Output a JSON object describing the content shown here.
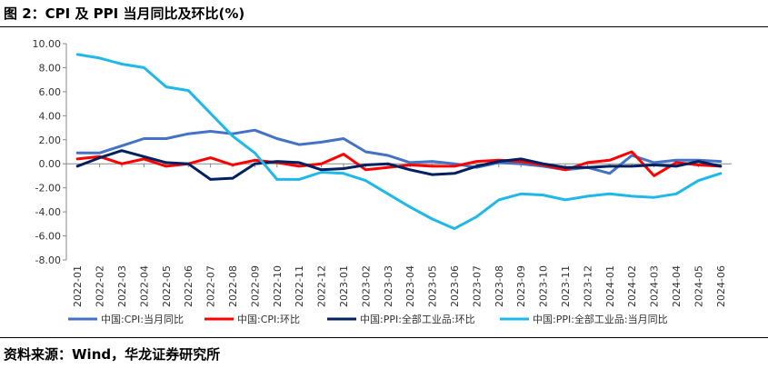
{
  "figure": {
    "title": "图 2：CPI 及 PPI 当月同比及环比(%)",
    "source": "资料来源：Wind，华龙证券研究所"
  },
  "chart_data": {
    "type": "line",
    "title": "",
    "xlabel": "",
    "ylabel": "",
    "ylim": [
      -8,
      10
    ],
    "ytick_step": 2,
    "grid": false,
    "legend_position": "bottom",
    "categories": [
      "2022-01",
      "2022-02",
      "2022-03",
      "2022-04",
      "2022-05",
      "2022-06",
      "2022-07",
      "2022-08",
      "2022-09",
      "2022-10",
      "2022-11",
      "2022-12",
      "2023-01",
      "2023-02",
      "2023-03",
      "2023-04",
      "2023-05",
      "2023-06",
      "2023-07",
      "2023-08",
      "2023-09",
      "2023-10",
      "2023-11",
      "2023-12",
      "2024-01",
      "2024-02",
      "2024-03",
      "2024-04",
      "2024-05",
      "2024-06"
    ],
    "series": [
      {
        "name": "中国:CPI:当月同比",
        "color": "#4472C4",
        "values": [
          0.9,
          0.9,
          1.5,
          2.1,
          2.1,
          2.5,
          2.7,
          2.5,
          2.8,
          2.1,
          1.6,
          1.8,
          2.1,
          1.0,
          0.7,
          0.1,
          0.2,
          0.0,
          -0.3,
          0.1,
          0.0,
          -0.2,
          -0.5,
          -0.3,
          -0.8,
          0.7,
          0.1,
          0.3,
          0.3,
          0.2
        ]
      },
      {
        "name": "中国:CPI:环比",
        "color": "#FF0000",
        "values": [
          0.4,
          0.6,
          0.0,
          0.4,
          -0.2,
          0.0,
          0.5,
          -0.1,
          0.3,
          0.1,
          -0.2,
          0.0,
          0.8,
          -0.5,
          -0.3,
          -0.1,
          -0.2,
          -0.2,
          0.2,
          0.3,
          0.2,
          -0.1,
          -0.5,
          0.1,
          0.3,
          1.0,
          -1.0,
          0.1,
          -0.1,
          -0.2
        ]
      },
      {
        "name": "中国:PPI:全部工业品:环比",
        "color": "#002060",
        "values": [
          -0.2,
          0.5,
          1.1,
          0.6,
          0.1,
          0.0,
          -1.3,
          -1.2,
          0.0,
          0.2,
          0.1,
          -0.5,
          -0.4,
          -0.1,
          0.0,
          -0.5,
          -0.9,
          -0.8,
          -0.2,
          0.2,
          0.4,
          0.0,
          -0.3,
          -0.3,
          -0.2,
          -0.2,
          -0.1,
          -0.2,
          0.2,
          -0.2
        ]
      },
      {
        "name": "中国:PPI:全部工业品:当月同比",
        "color": "#1FB8E8",
        "values": [
          9.1,
          8.8,
          8.3,
          8.0,
          6.4,
          6.1,
          4.2,
          2.3,
          0.9,
          -1.3,
          -1.3,
          -0.7,
          -0.8,
          -1.4,
          -2.5,
          -3.6,
          -4.6,
          -5.4,
          -4.4,
          -3.0,
          -2.5,
          -2.6,
          -3.0,
          -2.7,
          -2.5,
          -2.7,
          -2.8,
          -2.5,
          -1.4,
          -0.8
        ]
      }
    ]
  }
}
